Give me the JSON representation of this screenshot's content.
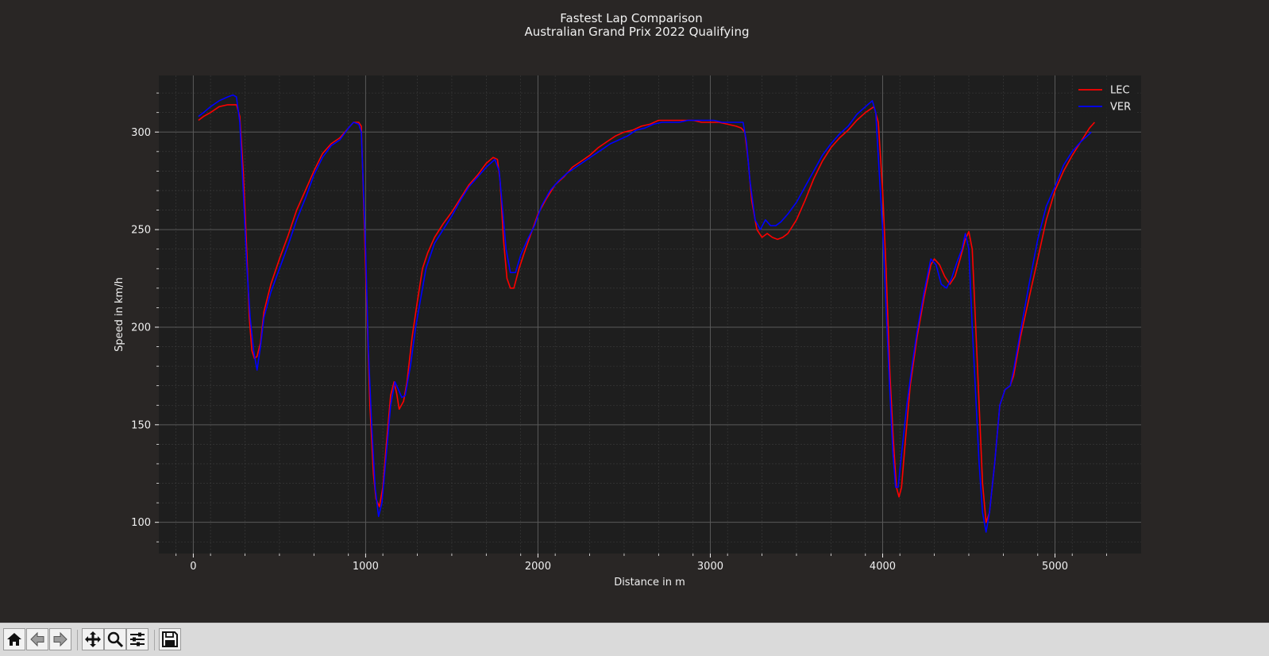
{
  "colors": {
    "figure_bg": "#292625",
    "axes_bg": "#1e1e1e",
    "text": "#f0f0f0",
    "grid_major": "#5a5a5a",
    "grid_minor": "#3c3c3c",
    "LEC": "#ff0000",
    "VER": "#0000ff"
  },
  "toolbar": {
    "buttons": [
      {
        "name": "home-button",
        "icon": "home-icon"
      },
      {
        "name": "back-button",
        "icon": "arrow-left-icon"
      },
      {
        "name": "forward-button",
        "icon": "arrow-right-icon"
      },
      {
        "name": "pan-button",
        "icon": "move-icon"
      },
      {
        "name": "zoom-button",
        "icon": "magnifier-icon"
      },
      {
        "name": "configure-subplots-button",
        "icon": "sliders-icon"
      },
      {
        "name": "save-button",
        "icon": "floppy-disk-icon"
      }
    ]
  },
  "chart_data": {
    "type": "line",
    "title": "Fastest Lap Comparison",
    "subtitle": "Australian Grand Prix 2022 Qualifying",
    "xlabel": "Distance in m",
    "ylabel": "Speed in km/h",
    "xlim": [
      -200,
      5500
    ],
    "ylim": [
      84,
      329
    ],
    "xticks": [
      0,
      1000,
      2000,
      3000,
      4000,
      5000
    ],
    "xtick_labels": [
      "0",
      "1000",
      "2000",
      "3000",
      "4000",
      "5000"
    ],
    "yticks": [
      100,
      150,
      200,
      250,
      300
    ],
    "ytick_labels": [
      "100",
      "150",
      "200",
      "250",
      "300"
    ],
    "grid": true,
    "legend_position": "top-right",
    "series": [
      {
        "name": "LEC",
        "color": "#ff0000",
        "points": [
          [
            30,
            306
          ],
          [
            60,
            308
          ],
          [
            100,
            310
          ],
          [
            150,
            313
          ],
          [
            200,
            314
          ],
          [
            230,
            314
          ],
          [
            250,
            314
          ],
          [
            270,
            308
          ],
          [
            290,
            280
          ],
          [
            310,
            240
          ],
          [
            325,
            205
          ],
          [
            340,
            188
          ],
          [
            355,
            184
          ],
          [
            370,
            185
          ],
          [
            390,
            192
          ],
          [
            410,
            208
          ],
          [
            450,
            222
          ],
          [
            500,
            235
          ],
          [
            550,
            247
          ],
          [
            600,
            260
          ],
          [
            650,
            270
          ],
          [
            700,
            280
          ],
          [
            750,
            289
          ],
          [
            800,
            294
          ],
          [
            850,
            297
          ],
          [
            900,
            302
          ],
          [
            930,
            305
          ],
          [
            960,
            305
          ],
          [
            975,
            303
          ],
          [
            1000,
            230
          ],
          [
            1010,
            200
          ],
          [
            1025,
            160
          ],
          [
            1045,
            125
          ],
          [
            1060,
            112
          ],
          [
            1080,
            108
          ],
          [
            1100,
            118
          ],
          [
            1120,
            140
          ],
          [
            1145,
            165
          ],
          [
            1165,
            172
          ],
          [
            1180,
            166
          ],
          [
            1195,
            158
          ],
          [
            1220,
            162
          ],
          [
            1240,
            172
          ],
          [
            1270,
            195
          ],
          [
            1300,
            213
          ],
          [
            1330,
            230
          ],
          [
            1360,
            238
          ],
          [
            1400,
            246
          ],
          [
            1450,
            253
          ],
          [
            1500,
            259
          ],
          [
            1550,
            266
          ],
          [
            1600,
            273
          ],
          [
            1650,
            278
          ],
          [
            1700,
            284
          ],
          [
            1740,
            287
          ],
          [
            1765,
            286
          ],
          [
            1780,
            275
          ],
          [
            1800,
            245
          ],
          [
            1820,
            225
          ],
          [
            1840,
            220
          ],
          [
            1860,
            220
          ],
          [
            1890,
            230
          ],
          [
            1920,
            238
          ],
          [
            1960,
            248
          ],
          [
            2000,
            258
          ],
          [
            2050,
            266
          ],
          [
            2100,
            273
          ],
          [
            2150,
            277
          ],
          [
            2200,
            282
          ],
          [
            2250,
            285
          ],
          [
            2300,
            288
          ],
          [
            2350,
            292
          ],
          [
            2400,
            295
          ],
          [
            2450,
            298
          ],
          [
            2500,
            300
          ],
          [
            2550,
            301
          ],
          [
            2600,
            303
          ],
          [
            2650,
            304
          ],
          [
            2700,
            306
          ],
          [
            2750,
            306
          ],
          [
            2800,
            306
          ],
          [
            2850,
            306
          ],
          [
            2900,
            306
          ],
          [
            2950,
            305
          ],
          [
            3000,
            305
          ],
          [
            3050,
            305
          ],
          [
            3100,
            304
          ],
          [
            3150,
            303
          ],
          [
            3180,
            302
          ],
          [
            3200,
            300
          ],
          [
            3220,
            285
          ],
          [
            3240,
            265
          ],
          [
            3270,
            250
          ],
          [
            3300,
            246
          ],
          [
            3330,
            248
          ],
          [
            3360,
            246
          ],
          [
            3390,
            245
          ],
          [
            3420,
            246
          ],
          [
            3450,
            248
          ],
          [
            3500,
            255
          ],
          [
            3550,
            265
          ],
          [
            3600,
            276
          ],
          [
            3650,
            285
          ],
          [
            3700,
            292
          ],
          [
            3750,
            297
          ],
          [
            3800,
            301
          ],
          [
            3850,
            306
          ],
          [
            3900,
            310
          ],
          [
            3950,
            313
          ],
          [
            3975,
            305
          ],
          [
            4000,
            270
          ],
          [
            4020,
            230
          ],
          [
            4040,
            180
          ],
          [
            4060,
            145
          ],
          [
            4080,
            118
          ],
          [
            4095,
            113
          ],
          [
            4110,
            118
          ],
          [
            4130,
            140
          ],
          [
            4160,
            170
          ],
          [
            4200,
            195
          ],
          [
            4240,
            215
          ],
          [
            4280,
            232
          ],
          [
            4300,
            235
          ],
          [
            4330,
            232
          ],
          [
            4360,
            226
          ],
          [
            4390,
            222
          ],
          [
            4420,
            226
          ],
          [
            4450,
            235
          ],
          [
            4480,
            245
          ],
          [
            4500,
            249
          ],
          [
            4520,
            240
          ],
          [
            4540,
            200
          ],
          [
            4560,
            160
          ],
          [
            4580,
            120
          ],
          [
            4600,
            100
          ],
          [
            4620,
            105
          ],
          [
            4650,
            130
          ],
          [
            4680,
            160
          ],
          [
            4710,
            168
          ],
          [
            4740,
            170
          ],
          [
            4760,
            175
          ],
          [
            4800,
            195
          ],
          [
            4850,
            215
          ],
          [
            4900,
            235
          ],
          [
            4950,
            255
          ],
          [
            5000,
            270
          ],
          [
            5050,
            280
          ],
          [
            5100,
            288
          ],
          [
            5150,
            295
          ],
          [
            5200,
            302
          ],
          [
            5230,
            305
          ]
        ]
      },
      {
        "name": "VER",
        "color": "#0000ff",
        "points": [
          [
            30,
            308
          ],
          [
            60,
            310
          ],
          [
            100,
            313
          ],
          [
            150,
            316
          ],
          [
            200,
            318
          ],
          [
            230,
            319
          ],
          [
            250,
            318
          ],
          [
            270,
            305
          ],
          [
            290,
            270
          ],
          [
            310,
            232
          ],
          [
            330,
            205
          ],
          [
            350,
            188
          ],
          [
            370,
            178
          ],
          [
            390,
            190
          ],
          [
            410,
            205
          ],
          [
            450,
            218
          ],
          [
            500,
            230
          ],
          [
            550,
            242
          ],
          [
            600,
            255
          ],
          [
            650,
            266
          ],
          [
            700,
            278
          ],
          [
            750,
            287
          ],
          [
            800,
            293
          ],
          [
            850,
            296
          ],
          [
            900,
            302
          ],
          [
            930,
            305
          ],
          [
            960,
            304
          ],
          [
            975,
            300
          ],
          [
            1000,
            240
          ],
          [
            1015,
            190
          ],
          [
            1035,
            150
          ],
          [
            1055,
            118
          ],
          [
            1075,
            103
          ],
          [
            1095,
            110
          ],
          [
            1120,
            135
          ],
          [
            1145,
            160
          ],
          [
            1170,
            172
          ],
          [
            1190,
            168
          ],
          [
            1210,
            164
          ],
          [
            1230,
            165
          ],
          [
            1260,
            180
          ],
          [
            1290,
            200
          ],
          [
            1320,
            215
          ],
          [
            1350,
            230
          ],
          [
            1400,
            243
          ],
          [
            1450,
            250
          ],
          [
            1500,
            257
          ],
          [
            1550,
            265
          ],
          [
            1600,
            272
          ],
          [
            1650,
            277
          ],
          [
            1700,
            282
          ],
          [
            1750,
            286
          ],
          [
            1775,
            280
          ],
          [
            1795,
            260
          ],
          [
            1815,
            240
          ],
          [
            1840,
            228
          ],
          [
            1870,
            228
          ],
          [
            1900,
            237
          ],
          [
            1940,
            245
          ],
          [
            1980,
            252
          ],
          [
            2020,
            262
          ],
          [
            2070,
            270
          ],
          [
            2120,
            275
          ],
          [
            2170,
            279
          ],
          [
            2220,
            282
          ],
          [
            2270,
            285
          ],
          [
            2320,
            288
          ],
          [
            2370,
            291
          ],
          [
            2420,
            294
          ],
          [
            2470,
            296
          ],
          [
            2520,
            298
          ],
          [
            2570,
            301
          ],
          [
            2620,
            302
          ],
          [
            2670,
            304
          ],
          [
            2720,
            305
          ],
          [
            2770,
            305
          ],
          [
            2820,
            305
          ],
          [
            2870,
            306
          ],
          [
            2920,
            306
          ],
          [
            2970,
            306
          ],
          [
            3020,
            306
          ],
          [
            3070,
            305
          ],
          [
            3120,
            305
          ],
          [
            3170,
            305
          ],
          [
            3190,
            305
          ],
          [
            3210,
            295
          ],
          [
            3230,
            275
          ],
          [
            3260,
            255
          ],
          [
            3290,
            250
          ],
          [
            3320,
            255
          ],
          [
            3350,
            252
          ],
          [
            3380,
            252
          ],
          [
            3410,
            254
          ],
          [
            3450,
            258
          ],
          [
            3500,
            264
          ],
          [
            3550,
            272
          ],
          [
            3600,
            280
          ],
          [
            3650,
            288
          ],
          [
            3700,
            294
          ],
          [
            3750,
            299
          ],
          [
            3800,
            303
          ],
          [
            3850,
            309
          ],
          [
            3900,
            313
          ],
          [
            3940,
            316
          ],
          [
            3960,
            310
          ],
          [
            3980,
            280
          ],
          [
            4000,
            250
          ],
          [
            4020,
            210
          ],
          [
            4040,
            170
          ],
          [
            4060,
            135
          ],
          [
            4075,
            118
          ],
          [
            4090,
            118
          ],
          [
            4110,
            135
          ],
          [
            4140,
            160
          ],
          [
            4170,
            180
          ],
          [
            4200,
            198
          ],
          [
            4240,
            218
          ],
          [
            4280,
            235
          ],
          [
            4310,
            232
          ],
          [
            4340,
            222
          ],
          [
            4370,
            220
          ],
          [
            4400,
            225
          ],
          [
            4430,
            233
          ],
          [
            4460,
            240
          ],
          [
            4480,
            248
          ],
          [
            4500,
            240
          ],
          [
            4520,
            200
          ],
          [
            4540,
            165
          ],
          [
            4560,
            130
          ],
          [
            4580,
            105
          ],
          [
            4600,
            95
          ],
          [
            4620,
            105
          ],
          [
            4650,
            130
          ],
          [
            4680,
            160
          ],
          [
            4710,
            168
          ],
          [
            4740,
            170
          ],
          [
            4760,
            178
          ],
          [
            4800,
            198
          ],
          [
            4850,
            222
          ],
          [
            4900,
            245
          ],
          [
            4950,
            262
          ],
          [
            5000,
            272
          ],
          [
            5050,
            283
          ],
          [
            5100,
            290
          ],
          [
            5150,
            295
          ],
          [
            5200,
            299
          ],
          [
            5210,
            300
          ]
        ]
      }
    ]
  }
}
